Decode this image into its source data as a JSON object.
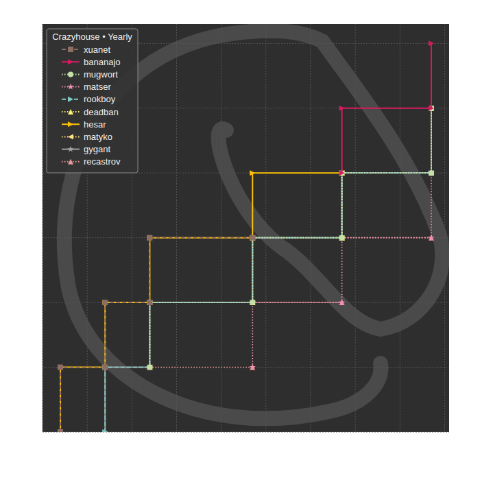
{
  "chart_data": {
    "type": "line",
    "title": "Crazyhouse • Yearly",
    "xlim": [
      0,
      9.1
    ],
    "ylim": [
      0,
      6.3
    ],
    "xticks": [
      0,
      1,
      2,
      3,
      4,
      5,
      6,
      7,
      8,
      9
    ],
    "yticks": [
      0,
      1,
      2,
      3,
      4,
      5,
      6
    ],
    "grid": true,
    "tick_labels": false,
    "legend": "upper left",
    "series": [
      {
        "name": "xuanet",
        "color": "#8d6e63",
        "marker": "square",
        "line_style": "dashed",
        "x": [
          0.4,
          0.4,
          1.4,
          1.4,
          2.4,
          2.4,
          4.7
        ],
        "values": [
          0,
          1,
          1,
          2,
          2,
          3,
          3
        ]
      },
      {
        "name": "bananajo",
        "color": "#d81b60",
        "marker": "triangle-right",
        "line_style": "solid",
        "x": [
          6.7,
          6.7,
          8.7,
          8.7
        ],
        "values": [
          4,
          5,
          5,
          6
        ]
      },
      {
        "name": "mugwort",
        "color": "#c5e1a5",
        "marker": "circle",
        "line_style": "dotted",
        "x": [
          2.4,
          2.4,
          4.7,
          4.7,
          6.7,
          6.7,
          8.7,
          8.7
        ],
        "values": [
          1,
          2,
          2,
          3,
          3,
          4,
          4,
          5
        ]
      },
      {
        "name": "matser",
        "color": "#f48fb1",
        "marker": "star",
        "line_style": "dotted",
        "x": [
          4.7,
          4.7,
          6.7,
          6.7,
          8.7,
          8.7
        ],
        "values": [
          1,
          2,
          2,
          3,
          3,
          4
        ]
      },
      {
        "name": "rookboy",
        "color": "#80cbc4",
        "marker": "triangle-right",
        "line_style": "dashed",
        "x": [
          1.4,
          1.4,
          2.4,
          2.4,
          4.7,
          4.7,
          6.7,
          6.7,
          8.7
        ],
        "values": [
          0,
          1,
          1,
          2,
          2,
          3,
          3,
          4,
          4
        ]
      },
      {
        "name": "deadban",
        "color": "#fff176",
        "marker": "triangle-up",
        "line_style": "dotted",
        "x": [
          4.7,
          4.7,
          6.7,
          6.7,
          8.7,
          8.7
        ],
        "values": [
          2,
          3,
          3,
          4,
          4,
          5
        ]
      },
      {
        "name": "hesar",
        "color": "#ffc107",
        "marker": "triangle-right",
        "line_style": "solid",
        "x": [
          0.4,
          0.4,
          1.4,
          1.4,
          2.4,
          2.4,
          4.7,
          4.7,
          6.7
        ],
        "values": [
          0,
          1,
          1,
          2,
          2,
          3,
          3,
          4,
          4
        ]
      },
      {
        "name": "matyko",
        "color": "#ffe082",
        "marker": "triangle-left",
        "line_style": "dotted",
        "x": [
          2.4,
          2.4,
          4.7,
          4.7,
          6.7,
          6.7,
          8.7,
          8.7
        ],
        "values": [
          1,
          2,
          2,
          3,
          3,
          4,
          4,
          5
        ]
      },
      {
        "name": "gygant",
        "color": "#9e9e9e",
        "marker": "star",
        "line_style": "solid",
        "x": [
          1.4,
          1.4,
          2.4,
          2.4,
          4.7,
          4.7,
          6.7,
          6.7,
          8.7,
          8.7
        ],
        "values": [
          0,
          1,
          1,
          2,
          2,
          3,
          3,
          4,
          4,
          5
        ]
      },
      {
        "name": "recastrov",
        "color": "#ef9a9a",
        "marker": "triangle-up",
        "line_style": "dotted",
        "x": [
          2.4,
          4.7,
          null,
          4.7,
          6.7,
          null,
          6.7,
          8.7
        ],
        "values": [
          1,
          1,
          null,
          2,
          2,
          null,
          3,
          3
        ]
      }
    ]
  }
}
